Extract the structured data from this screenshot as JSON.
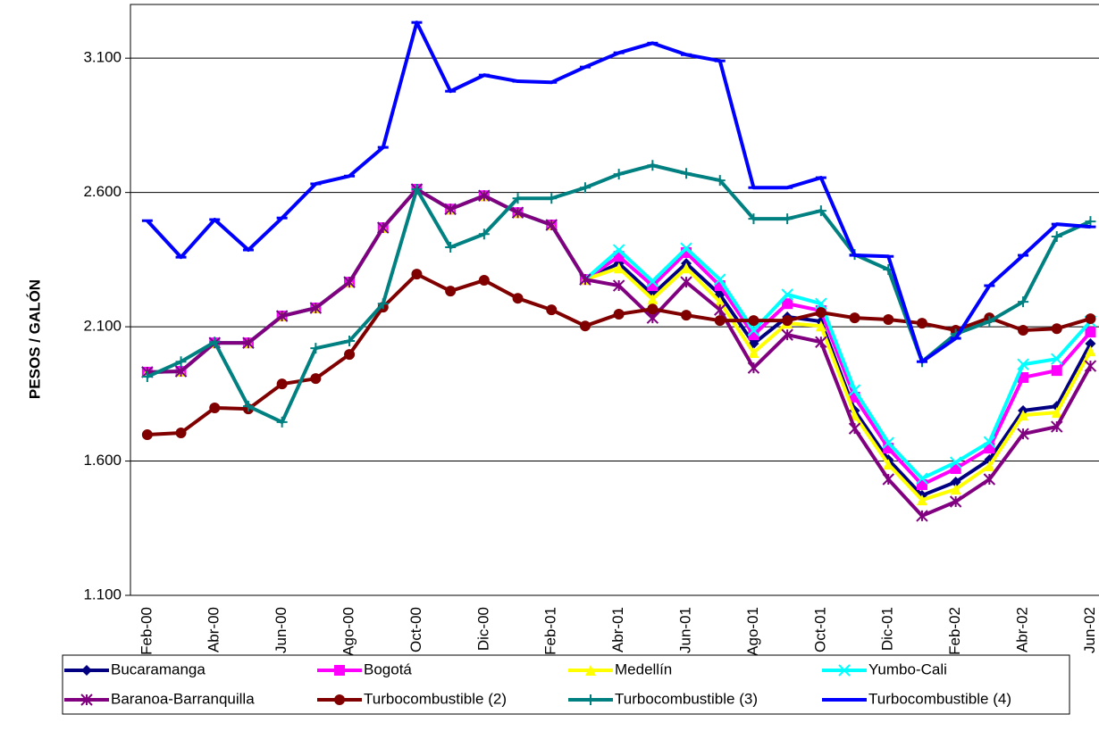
{
  "chart_data": {
    "type": "line",
    "y_label": "PESOS / GALÓN",
    "categories": [
      "Feb-00",
      null,
      "Abr-00",
      null,
      "Jun-00",
      null,
      "Ago-00",
      null,
      "Oct-00",
      null,
      "Dic-00",
      null,
      "Feb-01",
      null,
      "Abr-01",
      null,
      "Jun-01",
      null,
      "Ago-01",
      null,
      "Oct-01",
      null,
      "Dic-01",
      null,
      "Feb-02",
      null,
      "Abr-02",
      null,
      "Jun-02"
    ],
    "ylim": [
      1100,
      3300
    ],
    "yticks": [
      {
        "value": 1100,
        "label": "1.100"
      },
      {
        "value": 1600,
        "label": "1.600"
      },
      {
        "value": 2100,
        "label": "2.100"
      },
      {
        "value": 2600,
        "label": "2.600"
      },
      {
        "value": 3100,
        "label": "3.100"
      }
    ],
    "grid": true,
    "legend": "bottom",
    "series": [
      {
        "name": "Bucaramanga",
        "color": "#000080",
        "marker": "diamond",
        "values": [
          1931,
          1934,
          2040,
          2040,
          2140,
          2170,
          2266,
          2469,
          2612,
          2538,
          2588,
          2525,
          2479,
          2276,
          2336,
          2220,
          2336,
          2220,
          2037,
          2137,
          2120,
          1788,
          1605,
          1472,
          1522,
          1605,
          1788,
          1804,
          2037
        ]
      },
      {
        "name": "Bogotá",
        "color": "#ff00ff",
        "marker": "square",
        "values": [
          1931,
          1934,
          2040,
          2040,
          2140,
          2170,
          2266,
          2469,
          2612,
          2538,
          2588,
          2525,
          2479,
          2276,
          2362,
          2253,
          2376,
          2253,
          2070,
          2186,
          2160,
          1838,
          1648,
          1512,
          1572,
          1648,
          1911,
          1937,
          2080
        ]
      },
      {
        "name": "Medellín",
        "color": "#ffff00",
        "marker": "triangle",
        "values": [
          1931,
          1934,
          2040,
          2040,
          2140,
          2170,
          2266,
          2469,
          2612,
          2538,
          2588,
          2525,
          2479,
          2276,
          2319,
          2203,
          2319,
          2193,
          2004,
          2113,
          2103,
          1771,
          1588,
          1455,
          1495,
          1582,
          1771,
          1781,
          2010
        ]
      },
      {
        "name": "Yumbo-Cali",
        "color": "#00ffff",
        "marker": "x",
        "values": [
          1931,
          1934,
          2040,
          2040,
          2140,
          2170,
          2266,
          2469,
          2612,
          2538,
          2588,
          2525,
          2479,
          2276,
          2386,
          2269,
          2392,
          2276,
          2087,
          2220,
          2186,
          1864,
          1668,
          1535,
          1595,
          1671,
          1960,
          1980,
          2120
        ]
      },
      {
        "name": "Baranoa-Barranquilla",
        "color": "#800080",
        "marker": "asterisk",
        "values": [
          1931,
          1934,
          2040,
          2040,
          2140,
          2170,
          2266,
          2469,
          2612,
          2538,
          2588,
          2525,
          2479,
          2276,
          2253,
          2133,
          2266,
          2163,
          1947,
          2070,
          2043,
          1721,
          1532,
          1396,
          1449,
          1532,
          1701,
          1728,
          1954
        ]
      },
      {
        "name": "Turbocombustible (2)",
        "color": "#800000",
        "marker": "circle",
        "values": [
          1698,
          1705,
          1798,
          1794,
          1887,
          1907,
          1997,
          2173,
          2296,
          2233,
          2273,
          2206,
          2163,
          2103,
          2147,
          2166,
          2143,
          2123,
          2123,
          2123,
          2153,
          2133,
          2127,
          2113,
          2087,
          2133,
          2087,
          2093,
          2130
        ]
      },
      {
        "name": "Turbocombustible (3)",
        "color": "#008080",
        "marker": "plus",
        "values": [
          1914,
          1970,
          2043,
          1804,
          1745,
          2020,
          2047,
          2186,
          2612,
          2396,
          2445,
          2578,
          2578,
          2618,
          2668,
          2701,
          2671,
          2645,
          2502,
          2502,
          2532,
          2369,
          2313,
          1970,
          2073,
          2120,
          2193,
          2436,
          2492
        ]
      },
      {
        "name": "Turbocombustible (4)",
        "color": "#0000ff",
        "marker": "dash",
        "values": [
          2495,
          2359,
          2499,
          2386,
          2505,
          2632,
          2661,
          2768,
          3233,
          2977,
          3037,
          3014,
          3010,
          3067,
          3120,
          3156,
          3113,
          3090,
          2618,
          2618,
          2655,
          2366,
          2362,
          1970,
          2057,
          2253,
          2366,
          2482,
          2472
        ]
      }
    ]
  }
}
